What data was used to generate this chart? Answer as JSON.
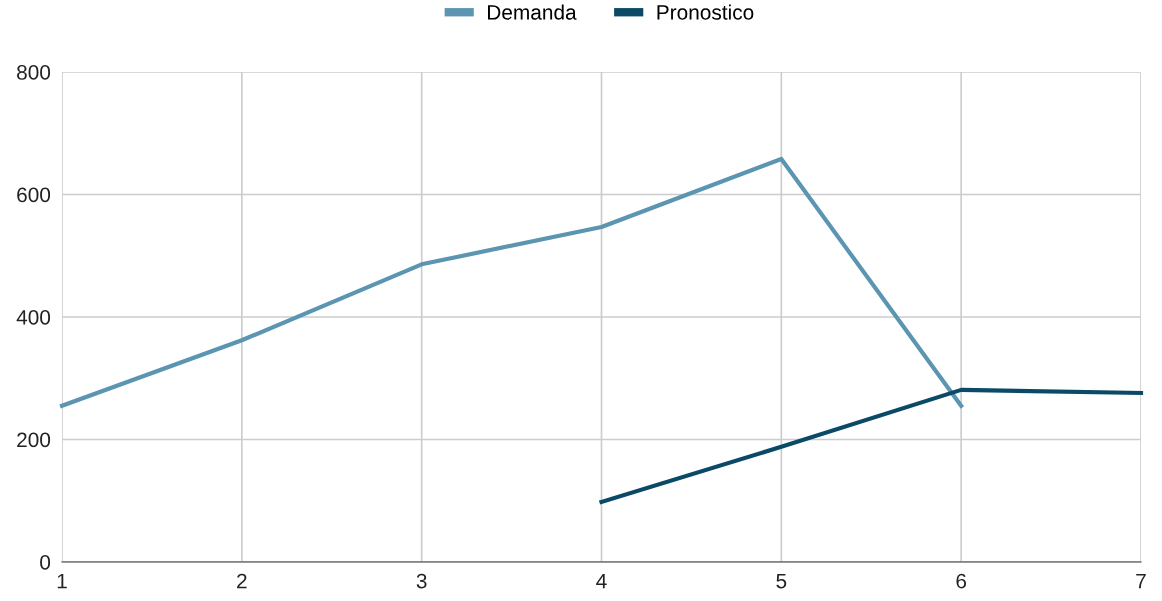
{
  "chart_data": {
    "type": "line",
    "xlim": [
      1,
      7
    ],
    "xticks": [
      1,
      2,
      3,
      4,
      5,
      6,
      7
    ],
    "ylim": [
      0,
      800
    ],
    "yticks": [
      0,
      200,
      400,
      600,
      800
    ],
    "grid": true,
    "legend": "top",
    "marker": "none",
    "line_style": "solid",
    "series": [
      {
        "name": "Demanda",
        "color": "#5b95b1",
        "x": [
          1,
          2,
          3,
          4,
          5,
          6
        ],
        "values": [
          255,
          362,
          486,
          547,
          658,
          255
        ]
      },
      {
        "name": "Pronostico",
        "color": "#0b4a66",
        "x": [
          4,
          5,
          6,
          7
        ],
        "values": [
          98,
          188,
          281,
          276
        ]
      }
    ]
  }
}
